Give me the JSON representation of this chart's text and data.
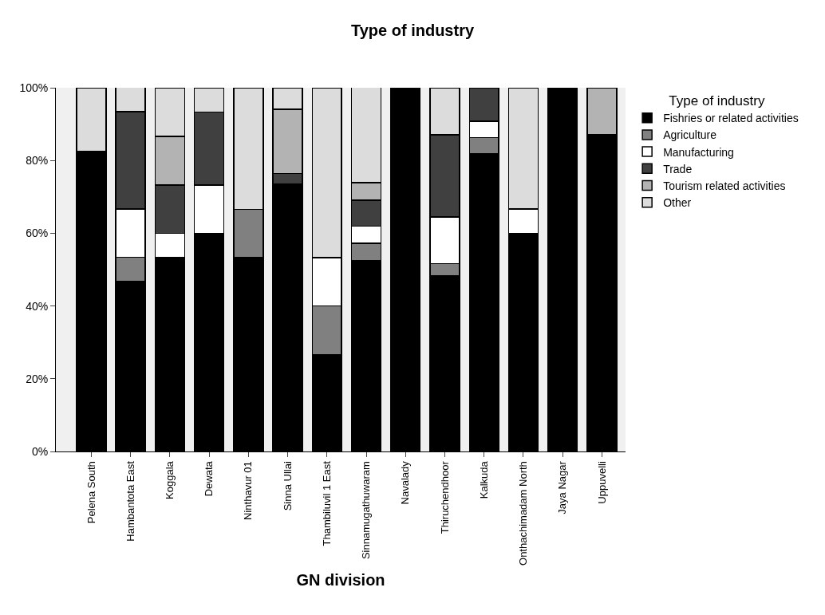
{
  "chart_data": {
    "type": "bar",
    "title": "Type of industry",
    "xlabel": "GN division",
    "legend_title": "Type of industry",
    "categories": [
      "Pelena South",
      "Hambantota East",
      "Koggala",
      "Dewata",
      "Ninthavur 01",
      "Sinna Ullai",
      "Thambiluvil 1 East",
      "Sinnamugathuwaram",
      "Navalady",
      "Thiruchendhoor",
      "Kalkuda",
      "Onthachimadam North",
      "Jaya Nagar",
      "Uppuvelli"
    ],
    "stacked": true,
    "legend": "top right",
    "grid": false,
    "ylim": [
      0,
      100
    ],
    "yticks": [
      {
        "value": 0,
        "label": "0%"
      },
      {
        "value": 20,
        "label": "20%"
      },
      {
        "value": 40,
        "label": "40%"
      },
      {
        "value": 60,
        "label": "60%"
      },
      {
        "value": 80,
        "label": "80%"
      },
      {
        "value": 100,
        "label": "100%"
      }
    ],
    "series": [
      {
        "name": "Fishries or related activities",
        "color": "#000000",
        "values": [
          82.5,
          46.7,
          53.3,
          60,
          53.3,
          73.5,
          26.7,
          52.4,
          100,
          48.4,
          81.8,
          60,
          100,
          87.1
        ]
      },
      {
        "name": "Agriculture",
        "color": "#808080",
        "values": [
          null,
          6.7,
          null,
          null,
          13.3,
          null,
          13.3,
          4.8,
          null,
          3.2,
          4.5,
          null,
          null,
          null
        ]
      },
      {
        "name": "Manufacturing",
        "color": "#ffffff",
        "values": [
          null,
          13.3,
          6.7,
          13.3,
          null,
          null,
          13.3,
          4.8,
          null,
          12.9,
          4.5,
          6.7,
          null,
          null
        ]
      },
      {
        "name": "Trade",
        "color": "#404040",
        "values": [
          null,
          26.7,
          13.3,
          20,
          null,
          2.9,
          null,
          7.1,
          null,
          22.6,
          9.1,
          null,
          null,
          null
        ]
      },
      {
        "name": "Tourism related activities",
        "color": "#b3b3b3",
        "values": [
          null,
          null,
          13.3,
          null,
          null,
          17.7,
          null,
          4.8,
          null,
          null,
          null,
          null,
          null,
          12.9
        ]
      },
      {
        "name": "Other",
        "color": "#dcdcdc",
        "values": [
          17.5,
          6.7,
          13.3,
          6.7,
          33.3,
          5.9,
          46.7,
          26.2,
          null,
          12.9,
          null,
          33.3,
          null,
          null
        ]
      }
    ]
  }
}
